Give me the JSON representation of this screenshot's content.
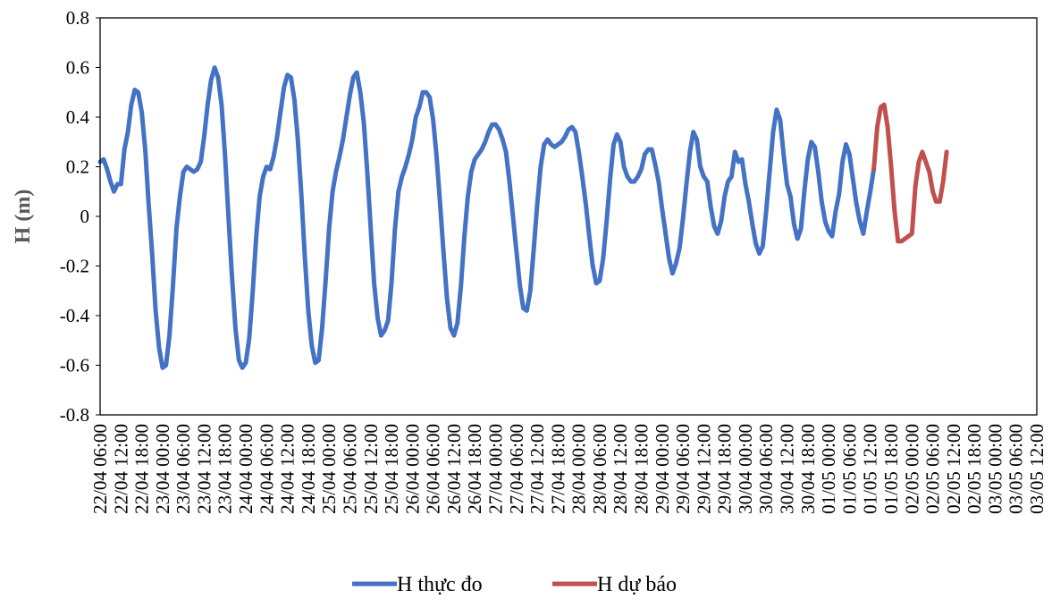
{
  "chart_data": {
    "type": "line",
    "title": "",
    "xlabel": "",
    "ylabel": "H (m)",
    "ylim": [
      -0.8,
      0.8
    ],
    "ytick_step": 0.2,
    "ytick_labels": [
      "-0.8",
      "-0.6",
      "-0.4",
      "-0.2",
      "0",
      "0.2",
      "0.4",
      "0.6",
      "0.8"
    ],
    "grid": false,
    "legend_position": "bottom",
    "x_unit": "hour",
    "x_start": "22/04 06:00",
    "x_end": "03/05 12:00",
    "x_tick_labels": [
      "22/04 06:00",
      "22/04 12:00",
      "22/04 18:00",
      "23/04 00:00",
      "23/04 06:00",
      "23/04 12:00",
      "23/04 18:00",
      "24/04 00:00",
      "24/04 06:00",
      "24/04 12:00",
      "24/04 18:00",
      "25/04 00:00",
      "25/04 06:00",
      "25/04 12:00",
      "25/04 18:00",
      "26/04 00:00",
      "26/04 06:00",
      "26/04 12:00",
      "26/04 18:00",
      "27/04 00:00",
      "27/04 06:00",
      "27/04 12:00",
      "27/04 18:00",
      "28/04 00:00",
      "28/04 06:00",
      "28/04 12:00",
      "28/04 18:00",
      "29/04 00:00",
      "29/04 06:00",
      "29/04 12:00",
      "29/04 18:00",
      "30/04 00:00",
      "30/04 06:00",
      "30/04 12:00",
      "30/04 18:00",
      "01/05 00:00",
      "01/05 06:00",
      "01/05 12:00",
      "01/05 18:00",
      "02/05 00:00",
      "02/05 06:00",
      "02/05 12:00",
      "02/05 18:00",
      "03/05 00:00",
      "03/05 06:00",
      "03/05 12:00"
    ],
    "series": [
      {
        "name": "H thực đo",
        "color": "#4472C4",
        "points": [
          [
            "22/04 06:00",
            0.22
          ],
          [
            "22/04 07:00",
            0.23
          ],
          [
            "22/04 08:00",
            0.19
          ],
          [
            "22/04 09:00",
            0.14
          ],
          [
            "22/04 10:00",
            0.1
          ],
          [
            "22/04 11:00",
            0.13
          ],
          [
            "22/04 12:00",
            0.13
          ],
          [
            "22/04 13:00",
            0.27
          ],
          [
            "22/04 14:00",
            0.34
          ],
          [
            "22/04 15:00",
            0.45
          ],
          [
            "22/04 16:00",
            0.51
          ],
          [
            "22/04 17:00",
            0.5
          ],
          [
            "22/04 18:00",
            0.42
          ],
          [
            "22/04 19:00",
            0.27
          ],
          [
            "22/04 20:00",
            0.05
          ],
          [
            "22/04 21:00",
            -0.15
          ],
          [
            "22/04 22:00",
            -0.38
          ],
          [
            "22/04 23:00",
            -0.53
          ],
          [
            "23/04 00:00",
            -0.61
          ],
          [
            "23/04 01:00",
            -0.6
          ],
          [
            "23/04 02:00",
            -0.48
          ],
          [
            "23/04 03:00",
            -0.28
          ],
          [
            "23/04 04:00",
            -0.05
          ],
          [
            "23/04 05:00",
            0.08
          ],
          [
            "23/04 06:00",
            0.18
          ],
          [
            "23/04 07:00",
            0.2
          ],
          [
            "23/04 08:00",
            0.19
          ],
          [
            "23/04 09:00",
            0.18
          ],
          [
            "23/04 10:00",
            0.19
          ],
          [
            "23/04 11:00",
            0.22
          ],
          [
            "23/04 12:00",
            0.32
          ],
          [
            "23/04 13:00",
            0.45
          ],
          [
            "23/04 14:00",
            0.55
          ],
          [
            "23/04 15:00",
            0.6
          ],
          [
            "23/04 16:00",
            0.56
          ],
          [
            "23/04 17:00",
            0.45
          ],
          [
            "23/04 18:00",
            0.25
          ],
          [
            "23/04 19:00",
            0.0
          ],
          [
            "23/04 20:00",
            -0.24
          ],
          [
            "23/04 21:00",
            -0.45
          ],
          [
            "23/04 22:00",
            -0.58
          ],
          [
            "23/04 23:00",
            -0.61
          ],
          [
            "24/04 00:00",
            -0.59
          ],
          [
            "24/04 01:00",
            -0.49
          ],
          [
            "24/04 02:00",
            -0.3
          ],
          [
            "24/04 03:00",
            -0.08
          ],
          [
            "24/04 04:00",
            0.08
          ],
          [
            "24/04 05:00",
            0.16
          ],
          [
            "24/04 06:00",
            0.2
          ],
          [
            "24/04 07:00",
            0.19
          ],
          [
            "24/04 08:00",
            0.24
          ],
          [
            "24/04 09:00",
            0.32
          ],
          [
            "24/04 10:00",
            0.42
          ],
          [
            "24/04 11:00",
            0.52
          ],
          [
            "24/04 12:00",
            0.57
          ],
          [
            "24/04 13:00",
            0.56
          ],
          [
            "24/04 14:00",
            0.47
          ],
          [
            "24/04 15:00",
            0.31
          ],
          [
            "24/04 16:00",
            0.09
          ],
          [
            "24/04 17:00",
            -0.16
          ],
          [
            "24/04 18:00",
            -0.38
          ],
          [
            "24/04 19:00",
            -0.52
          ],
          [
            "24/04 20:00",
            -0.59
          ],
          [
            "24/04 21:00",
            -0.58
          ],
          [
            "24/04 22:00",
            -0.45
          ],
          [
            "24/04 23:00",
            -0.26
          ],
          [
            "25/04 00:00",
            -0.05
          ],
          [
            "25/04 01:00",
            0.1
          ],
          [
            "25/04 02:00",
            0.18
          ],
          [
            "25/04 03:00",
            0.24
          ],
          [
            "25/04 04:00",
            0.31
          ],
          [
            "25/04 05:00",
            0.4
          ],
          [
            "25/04 06:00",
            0.49
          ],
          [
            "25/04 07:00",
            0.56
          ],
          [
            "25/04 08:00",
            0.58
          ],
          [
            "25/04 09:00",
            0.5
          ],
          [
            "25/04 10:00",
            0.38
          ],
          [
            "25/04 11:00",
            0.18
          ],
          [
            "25/04 12:00",
            -0.05
          ],
          [
            "25/04 13:00",
            -0.27
          ],
          [
            "25/04 14:00",
            -0.41
          ],
          [
            "25/04 15:00",
            -0.48
          ],
          [
            "25/04 16:00",
            -0.46
          ],
          [
            "25/04 17:00",
            -0.42
          ],
          [
            "25/04 18:00",
            -0.27
          ],
          [
            "25/04 19:00",
            -0.05
          ],
          [
            "25/04 20:00",
            0.1
          ],
          [
            "25/04 21:00",
            0.16
          ],
          [
            "25/04 22:00",
            0.2
          ],
          [
            "25/04 23:00",
            0.25
          ],
          [
            "26/04 00:00",
            0.31
          ],
          [
            "26/04 01:00",
            0.4
          ],
          [
            "26/04 02:00",
            0.44
          ],
          [
            "26/04 03:00",
            0.5
          ],
          [
            "26/04 04:00",
            0.5
          ],
          [
            "26/04 05:00",
            0.48
          ],
          [
            "26/04 06:00",
            0.39
          ],
          [
            "26/04 07:00",
            0.24
          ],
          [
            "26/04 08:00",
            0.05
          ],
          [
            "26/04 09:00",
            -0.15
          ],
          [
            "26/04 10:00",
            -0.33
          ],
          [
            "26/04 11:00",
            -0.45
          ],
          [
            "26/04 12:00",
            -0.48
          ],
          [
            "26/04 13:00",
            -0.43
          ],
          [
            "26/04 14:00",
            -0.28
          ],
          [
            "26/04 15:00",
            -0.08
          ],
          [
            "26/04 16:00",
            0.08
          ],
          [
            "26/04 17:00",
            0.18
          ],
          [
            "26/04 18:00",
            0.23
          ],
          [
            "26/04 19:00",
            0.25
          ],
          [
            "26/04 20:00",
            0.27
          ],
          [
            "26/04 21:00",
            0.3
          ],
          [
            "26/04 22:00",
            0.34
          ],
          [
            "26/04 23:00",
            0.37
          ],
          [
            "27/04 00:00",
            0.37
          ],
          [
            "27/04 01:00",
            0.35
          ],
          [
            "27/04 02:00",
            0.31
          ],
          [
            "27/04 03:00",
            0.26
          ],
          [
            "27/04 04:00",
            0.14
          ],
          [
            "27/04 05:00",
            0.0
          ],
          [
            "27/04 06:00",
            -0.14
          ],
          [
            "27/04 07:00",
            -0.28
          ],
          [
            "27/04 08:00",
            -0.37
          ],
          [
            "27/04 09:00",
            -0.38
          ],
          [
            "27/04 10:00",
            -0.3
          ],
          [
            "27/04 11:00",
            -0.13
          ],
          [
            "27/04 12:00",
            0.05
          ],
          [
            "27/04 13:00",
            0.2
          ],
          [
            "27/04 14:00",
            0.29
          ],
          [
            "27/04 15:00",
            0.31
          ],
          [
            "27/04 16:00",
            0.29
          ],
          [
            "27/04 17:00",
            0.28
          ],
          [
            "27/04 18:00",
            0.29
          ],
          [
            "27/04 19:00",
            0.3
          ],
          [
            "27/04 20:00",
            0.32
          ],
          [
            "27/04 21:00",
            0.35
          ],
          [
            "27/04 22:00",
            0.36
          ],
          [
            "27/04 23:00",
            0.34
          ],
          [
            "28/04 00:00",
            0.26
          ],
          [
            "28/04 01:00",
            0.16
          ],
          [
            "28/04 02:00",
            0.05
          ],
          [
            "28/04 03:00",
            -0.08
          ],
          [
            "28/04 04:00",
            -0.2
          ],
          [
            "28/04 05:00",
            -0.27
          ],
          [
            "28/04 06:00",
            -0.26
          ],
          [
            "28/04 07:00",
            -0.17
          ],
          [
            "28/04 08:00",
            -0.02
          ],
          [
            "28/04 09:00",
            0.15
          ],
          [
            "28/04 10:00",
            0.29
          ],
          [
            "28/04 11:00",
            0.33
          ],
          [
            "28/04 12:00",
            0.3
          ],
          [
            "28/04 13:00",
            0.2
          ],
          [
            "28/04 14:00",
            0.16
          ],
          [
            "28/04 15:00",
            0.14
          ],
          [
            "28/04 16:00",
            0.14
          ],
          [
            "28/04 17:00",
            0.16
          ],
          [
            "28/04 18:00",
            0.19
          ],
          [
            "28/04 19:00",
            0.25
          ],
          [
            "28/04 20:00",
            0.27
          ],
          [
            "28/04 21:00",
            0.27
          ],
          [
            "28/04 22:00",
            0.21
          ],
          [
            "28/04 23:00",
            0.14
          ],
          [
            "29/04 00:00",
            0.03
          ],
          [
            "29/04 01:00",
            -0.07
          ],
          [
            "29/04 02:00",
            -0.17
          ],
          [
            "29/04 03:00",
            -0.23
          ],
          [
            "29/04 04:00",
            -0.19
          ],
          [
            "29/04 05:00",
            -0.13
          ],
          [
            "29/04 06:00",
            -0.01
          ],
          [
            "29/04 07:00",
            0.13
          ],
          [
            "29/04 08:00",
            0.26
          ],
          [
            "29/04 09:00",
            0.34
          ],
          [
            "29/04 10:00",
            0.31
          ],
          [
            "29/04 11:00",
            0.2
          ],
          [
            "29/04 12:00",
            0.16
          ],
          [
            "29/04 13:00",
            0.14
          ],
          [
            "29/04 14:00",
            0.04
          ],
          [
            "29/04 15:00",
            -0.04
          ],
          [
            "29/04 16:00",
            -0.07
          ],
          [
            "29/04 17:00",
            -0.02
          ],
          [
            "29/04 18:00",
            0.08
          ],
          [
            "29/04 19:00",
            0.14
          ],
          [
            "29/04 20:00",
            0.16
          ],
          [
            "29/04 21:00",
            0.26
          ],
          [
            "29/04 22:00",
            0.22
          ],
          [
            "29/04 23:00",
            0.23
          ],
          [
            "30/04 00:00",
            0.13
          ],
          [
            "30/04 01:00",
            0.06
          ],
          [
            "30/04 02:00",
            -0.03
          ],
          [
            "30/04 03:00",
            -0.11
          ],
          [
            "30/04 04:00",
            -0.15
          ],
          [
            "30/04 05:00",
            -0.12
          ],
          [
            "30/04 06:00",
            0.02
          ],
          [
            "30/04 07:00",
            0.18
          ],
          [
            "30/04 08:00",
            0.34
          ],
          [
            "30/04 09:00",
            0.43
          ],
          [
            "30/04 10:00",
            0.39
          ],
          [
            "30/04 11:00",
            0.25
          ],
          [
            "30/04 12:00",
            0.13
          ],
          [
            "30/04 13:00",
            0.08
          ],
          [
            "30/04 14:00",
            -0.03
          ],
          [
            "30/04 15:00",
            -0.09
          ],
          [
            "30/04 16:00",
            -0.05
          ],
          [
            "30/04 17:00",
            0.1
          ],
          [
            "30/04 18:00",
            0.23
          ],
          [
            "30/04 19:00",
            0.3
          ],
          [
            "30/04 20:00",
            0.28
          ],
          [
            "30/04 21:00",
            0.18
          ],
          [
            "30/04 22:00",
            0.06
          ],
          [
            "30/04 23:00",
            -0.02
          ],
          [
            "01/05 00:00",
            -0.06
          ],
          [
            "01/05 01:00",
            -0.08
          ],
          [
            "01/05 02:00",
            0.02
          ],
          [
            "01/05 03:00",
            0.09
          ],
          [
            "01/05 04:00",
            0.22
          ],
          [
            "01/05 05:00",
            0.29
          ],
          [
            "01/05 06:00",
            0.25
          ],
          [
            "01/05 07:00",
            0.15
          ],
          [
            "01/05 08:00",
            0.05
          ],
          [
            "01/05 09:00",
            -0.02
          ],
          [
            "01/05 10:00",
            -0.07
          ],
          [
            "01/05 11:00",
            0.02
          ],
          [
            "01/05 12:00",
            0.1
          ],
          [
            "01/05 13:00",
            0.19
          ]
        ]
      },
      {
        "name": "H dự báo",
        "color": "#C0504D",
        "points": [
          [
            "01/05 13:00",
            0.19
          ],
          [
            "01/05 14:00",
            0.36
          ],
          [
            "01/05 15:00",
            0.44
          ],
          [
            "01/05 16:00",
            0.45
          ],
          [
            "01/05 17:00",
            0.36
          ],
          [
            "01/05 18:00",
            0.2
          ],
          [
            "01/05 19:00",
            0.02
          ],
          [
            "01/05 20:00",
            -0.1
          ],
          [
            "01/05 21:00",
            -0.1
          ],
          [
            "01/05 22:00",
            -0.09
          ],
          [
            "01/05 23:00",
            -0.08
          ],
          [
            "02/05 00:00",
            -0.07
          ],
          [
            "02/05 01:00",
            0.12
          ],
          [
            "02/05 02:00",
            0.22
          ],
          [
            "02/05 03:00",
            0.26
          ],
          [
            "02/05 04:00",
            0.22
          ],
          [
            "02/05 05:00",
            0.18
          ],
          [
            "02/05 06:00",
            0.1
          ],
          [
            "02/05 07:00",
            0.06
          ],
          [
            "02/05 08:00",
            0.06
          ],
          [
            "02/05 09:00",
            0.14
          ],
          [
            "02/05 10:00",
            0.26
          ]
        ]
      }
    ]
  },
  "legend": [
    {
      "label": "H thực đo",
      "color": "#4472C4"
    },
    {
      "label": "H dự báo",
      "color": "#C0504D"
    }
  ]
}
